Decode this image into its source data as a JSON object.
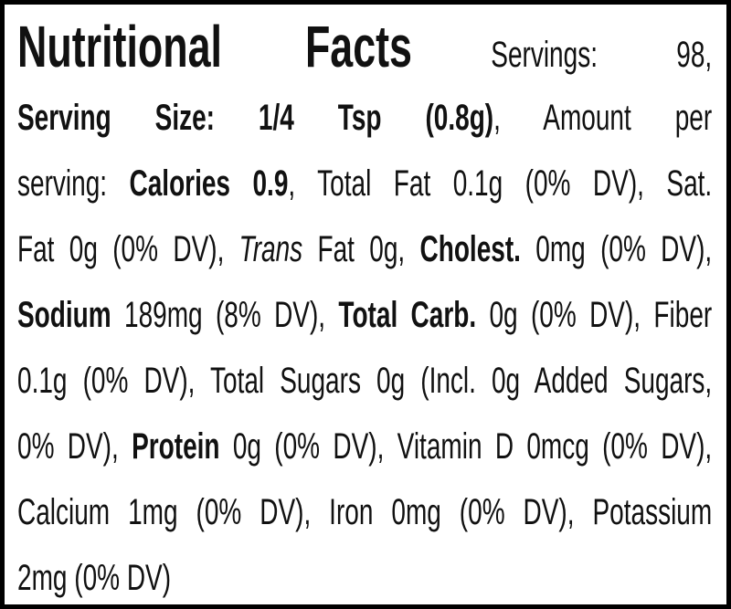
{
  "lines": [
    [
      "Nutritional Facts",
      " Servings: 98,"
    ],
    [
      "Serving Size: 1/4 Tsp (0.8g)",
      ", Amount per"
    ],
    [
      "serving: ",
      "Calories 0.9",
      ", Total Fat 0.1g (0% DV), Sat."
    ],
    [
      "Fat 0g (0% DV), ",
      "Trans",
      " Fat 0g, ",
      "Cholest.",
      " 0mg (0% DV),"
    ],
    [
      "Sodium",
      " 189mg (8% DV), ",
      "Total Carb.",
      " 0g (0% DV), Fiber"
    ],
    [
      "0.1g (0% DV), Total Sugars 0g (Incl. 0g Added Sugars,"
    ],
    [
      "0% DV), ",
      "Protein",
      " 0g (0% DV), Vitamin D 0mcg (0% DV),"
    ],
    [
      "Calcium 1mg (0% DV), Iron 0mg (0% DV), Potassium"
    ],
    [
      "2mg (0% DV)"
    ]
  ]
}
